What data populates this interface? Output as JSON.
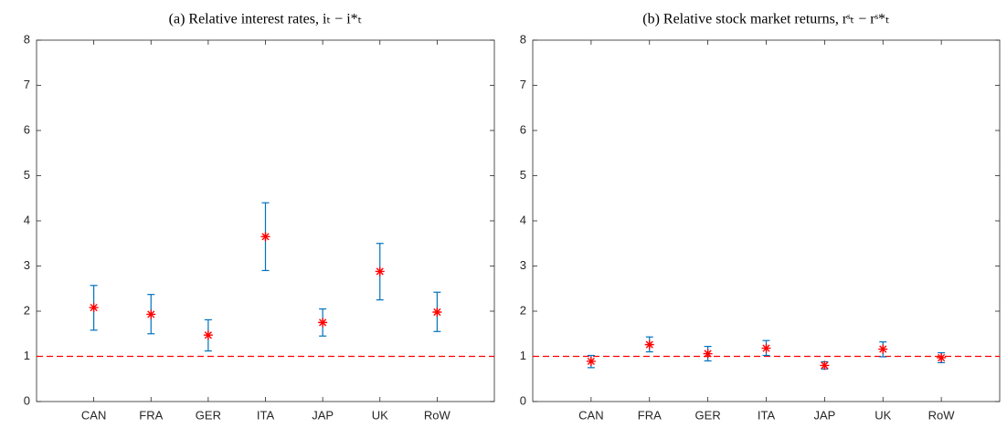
{
  "chart_data": [
    {
      "type": "errorbar",
      "title": "(a) Relative interest rates, iₜ − i*ₜ",
      "categories": [
        "CAN",
        "FRA",
        "GER",
        "ITA",
        "JAP",
        "UK",
        "RoW"
      ],
      "values": [
        2.08,
        1.93,
        1.47,
        3.65,
        1.75,
        2.88,
        1.98
      ],
      "lower": [
        1.58,
        1.5,
        1.12,
        2.9,
        1.45,
        2.25,
        1.55
      ],
      "upper": [
        2.57,
        2.37,
        1.81,
        4.4,
        2.05,
        3.5,
        2.42
      ],
      "color": "#0072bd",
      "marker_color": "#ff0000",
      "reference": 1,
      "reference_color": "#ff0000",
      "ylim": [
        0,
        8
      ],
      "yticks": [
        0,
        1,
        2,
        3,
        4,
        5,
        6,
        7,
        8
      ]
    },
    {
      "type": "errorbar",
      "title": "(b) Relative stock market returns, rˢₜ − rˢ*ₜ",
      "categories": [
        "CAN",
        "FRA",
        "GER",
        "ITA",
        "JAP",
        "UK",
        "RoW"
      ],
      "values": [
        0.89,
        1.26,
        1.06,
        1.18,
        0.8,
        1.16,
        0.97
      ],
      "lower": [
        0.75,
        1.1,
        0.9,
        1.02,
        0.72,
        0.99,
        0.86
      ],
      "upper": [
        1.02,
        1.43,
        1.22,
        1.35,
        0.88,
        1.32,
        1.08
      ],
      "color": "#0072bd",
      "marker_color": "#ff0000",
      "reference": 1,
      "reference_color": "#ff0000",
      "ylim": [
        0,
        8
      ],
      "yticks": [
        0,
        1,
        2,
        3,
        4,
        5,
        6,
        7,
        8
      ]
    }
  ]
}
